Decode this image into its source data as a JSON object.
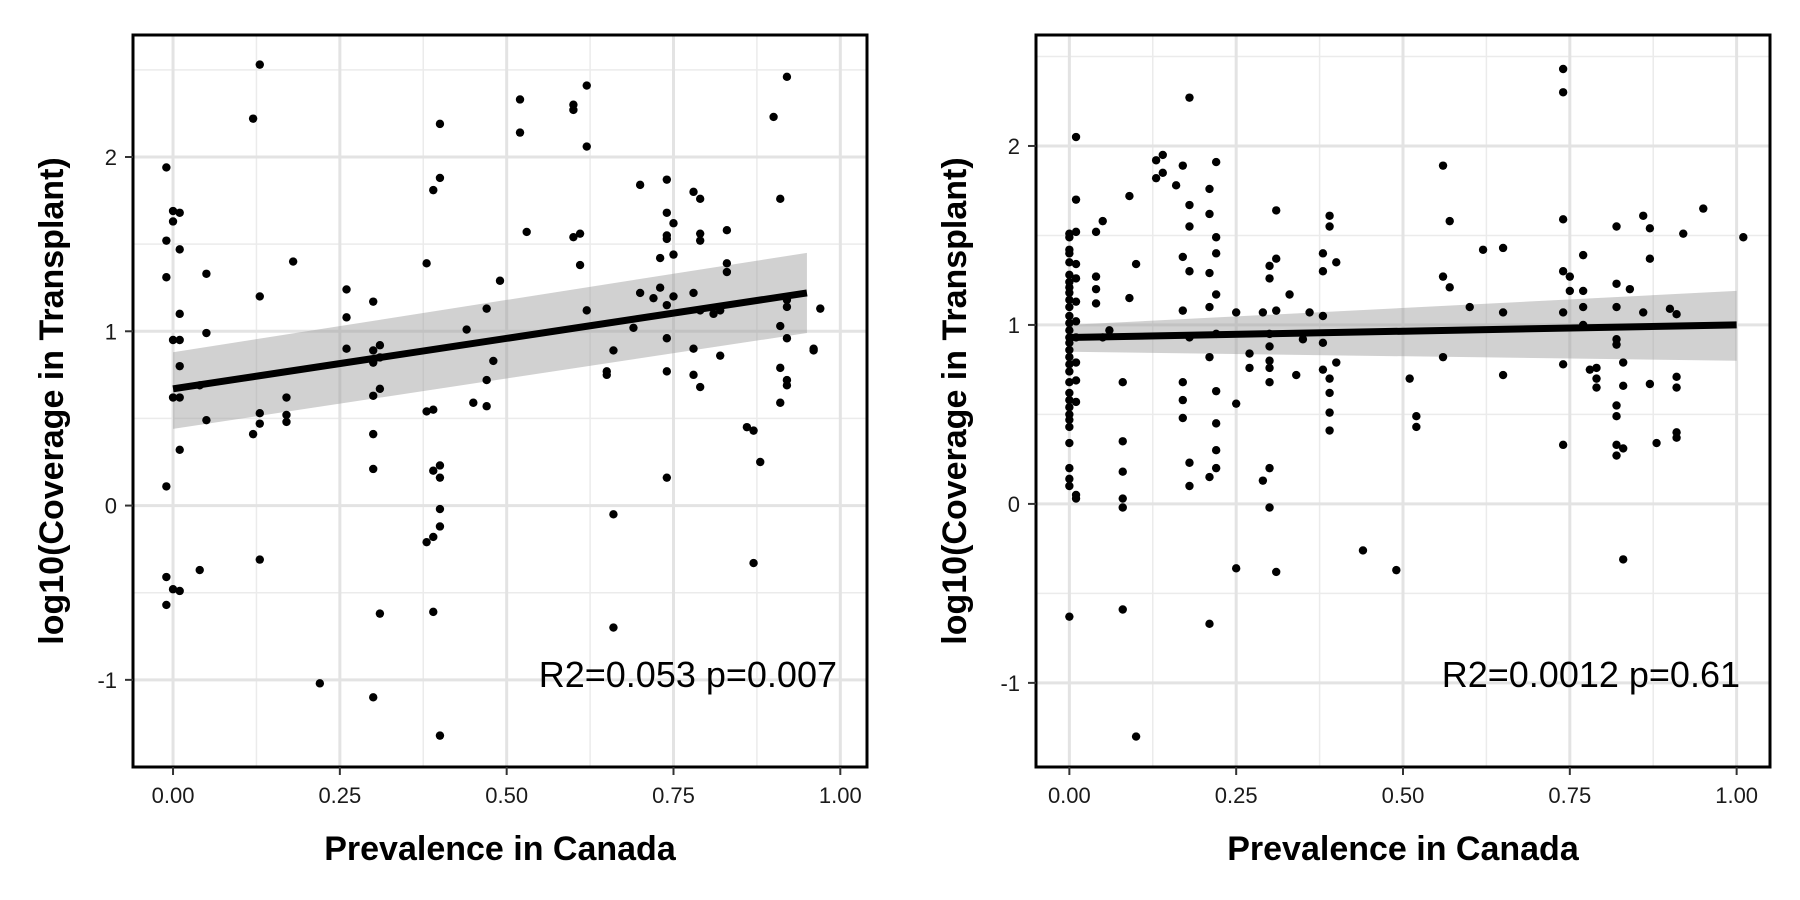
{
  "chart_data": [
    {
      "type": "scatter",
      "xlabel": "Prevalence in Canada",
      "ylabel": "log10(Coverage in Transplant)",
      "xlim": [
        -0.06,
        1.04
      ],
      "ylim": [
        -1.5,
        2.7
      ],
      "xticks": [
        0.0,
        0.25,
        0.5,
        0.75,
        1.0
      ],
      "xtick_labels": [
        "0.00",
        "0.25",
        "0.50",
        "0.75",
        "1.00"
      ],
      "yticks": [
        -1,
        0,
        1,
        2
      ],
      "ytick_labels": [
        "-1",
        "0",
        "1",
        "2"
      ],
      "grid": true,
      "annotation": "R2=0.053 p=0.007",
      "fit": {
        "x": [
          0.0,
          0.95
        ],
        "y": [
          0.67,
          1.22
        ]
      },
      "band": {
        "x": [
          0.0,
          0.95
        ],
        "upper": [
          0.88,
          1.45
        ],
        "lower": [
          0.44,
          0.99
        ]
      },
      "points": [
        [
          -0.01,
          1.94
        ],
        [
          -0.01,
          1.52
        ],
        [
          0.0,
          1.63
        ],
        [
          0.0,
          1.69
        ],
        [
          0.01,
          1.68
        ],
        [
          0.01,
          1.47
        ],
        [
          -0.01,
          1.31
        ],
        [
          0.01,
          1.1
        ],
        [
          0.0,
          0.95
        ],
        [
          0.01,
          0.95
        ],
        [
          0.01,
          0.8
        ],
        [
          0.01,
          0.62
        ],
        [
          0.0,
          0.62
        ],
        [
          0.01,
          0.32
        ],
        [
          -0.01,
          0.11
        ],
        [
          -0.01,
          -0.41
        ],
        [
          -0.01,
          -0.57
        ],
        [
          0.01,
          -0.49
        ],
        [
          0.0,
          -0.48
        ],
        [
          0.05,
          1.33
        ],
        [
          0.05,
          0.99
        ],
        [
          0.04,
          0.69
        ],
        [
          0.05,
          0.49
        ],
        [
          0.04,
          -0.37
        ],
        [
          0.13,
          2.53
        ],
        [
          0.12,
          2.22
        ],
        [
          0.13,
          1.2
        ],
        [
          0.13,
          0.53
        ],
        [
          0.13,
          0.47
        ],
        [
          0.12,
          0.41
        ],
        [
          0.13,
          -0.31
        ],
        [
          0.18,
          1.4
        ],
        [
          0.17,
          0.62
        ],
        [
          0.17,
          0.52
        ],
        [
          0.17,
          0.48
        ],
        [
          0.22,
          -1.02
        ],
        [
          0.26,
          1.24
        ],
        [
          0.26,
          1.08
        ],
        [
          0.26,
          0.9
        ],
        [
          0.3,
          1.17
        ],
        [
          0.3,
          0.89
        ],
        [
          0.31,
          0.92
        ],
        [
          0.31,
          0.85
        ],
        [
          0.3,
          0.82
        ],
        [
          0.31,
          0.67
        ],
        [
          0.3,
          0.63
        ],
        [
          0.3,
          0.41
        ],
        [
          0.3,
          0.21
        ],
        [
          0.31,
          -0.62
        ],
        [
          0.3,
          -1.1
        ],
        [
          0.38,
          1.39
        ],
        [
          0.39,
          1.81
        ],
        [
          0.4,
          1.88
        ],
        [
          0.4,
          2.19
        ],
        [
          0.39,
          0.55
        ],
        [
          0.38,
          0.54
        ],
        [
          0.39,
          0.2
        ],
        [
          0.4,
          0.23
        ],
        [
          0.4,
          0.16
        ],
        [
          0.4,
          -0.02
        ],
        [
          0.4,
          -0.12
        ],
        [
          0.39,
          -0.18
        ],
        [
          0.38,
          -0.21
        ],
        [
          0.39,
          -0.61
        ],
        [
          0.4,
          -1.32
        ],
        [
          0.44,
          1.01
        ],
        [
          0.45,
          0.59
        ],
        [
          0.47,
          1.13
        ],
        [
          0.47,
          0.72
        ],
        [
          0.47,
          0.57
        ],
        [
          0.48,
          0.83
        ],
        [
          0.49,
          1.29
        ],
        [
          0.52,
          2.33
        ],
        [
          0.52,
          2.14
        ],
        [
          0.53,
          1.57
        ],
        [
          0.6,
          2.3
        ],
        [
          0.6,
          2.27
        ],
        [
          0.62,
          2.41
        ],
        [
          0.62,
          2.06
        ],
        [
          0.61,
          1.56
        ],
        [
          0.6,
          1.54
        ],
        [
          0.61,
          1.38
        ],
        [
          0.62,
          1.12
        ],
        [
          0.65,
          0.77
        ],
        [
          0.65,
          0.75
        ],
        [
          0.66,
          0.89
        ],
        [
          0.66,
          -0.05
        ],
        [
          0.66,
          -0.7
        ],
        [
          0.7,
          1.84
        ],
        [
          0.7,
          1.22
        ],
        [
          0.69,
          1.02
        ],
        [
          0.72,
          1.19
        ],
        [
          0.73,
          1.25
        ],
        [
          0.73,
          1.42
        ],
        [
          0.74,
          1.55
        ],
        [
          0.74,
          1.53
        ],
        [
          0.74,
          1.87
        ],
        [
          0.74,
          1.68
        ],
        [
          0.75,
          1.62
        ],
        [
          0.75,
          1.44
        ],
        [
          0.74,
          1.15
        ],
        [
          0.75,
          1.2
        ],
        [
          0.74,
          0.96
        ],
        [
          0.74,
          0.77
        ],
        [
          0.74,
          0.16
        ],
        [
          0.78,
          1.8
        ],
        [
          0.79,
          1.76
        ],
        [
          0.79,
          1.56
        ],
        [
          0.79,
          1.52
        ],
        [
          0.78,
          1.22
        ],
        [
          0.79,
          1.12
        ],
        [
          0.78,
          0.9
        ],
        [
          0.78,
          0.75
        ],
        [
          0.79,
          0.68
        ],
        [
          0.81,
          1.1
        ],
        [
          0.82,
          0.86
        ],
        [
          0.82,
          1.12
        ],
        [
          0.83,
          1.34
        ],
        [
          0.83,
          1.39
        ],
        [
          0.83,
          1.58
        ],
        [
          0.86,
          0.45
        ],
        [
          0.87,
          0.43
        ],
        [
          0.88,
          0.25
        ],
        [
          0.87,
          -0.33
        ],
        [
          0.9,
          2.23
        ],
        [
          0.91,
          0.59
        ],
        [
          0.91,
          0.79
        ],
        [
          0.91,
          1.03
        ],
        [
          0.91,
          1.76
        ],
        [
          0.92,
          2.46
        ],
        [
          0.92,
          1.14
        ],
        [
          0.92,
          1.18
        ],
        [
          0.92,
          0.96
        ],
        [
          0.92,
          0.72
        ],
        [
          0.92,
          0.69
        ],
        [
          0.96,
          0.89
        ],
        [
          0.96,
          0.9
        ],
        [
          0.97,
          1.13
        ]
      ]
    },
    {
      "type": "scatter",
      "xlabel": "Prevalence in Canada",
      "ylabel": "log10(Coverage in Transplant)",
      "xlim": [
        -0.05,
        1.05
      ],
      "ylim": [
        -1.47,
        2.62
      ],
      "xticks": [
        0.0,
        0.25,
        0.5,
        0.75,
        1.0
      ],
      "xtick_labels": [
        "0.00",
        "0.25",
        "0.50",
        "0.75",
        "1.00"
      ],
      "yticks": [
        -1,
        0,
        1,
        2
      ],
      "ytick_labels": [
        "-1",
        "0",
        "1",
        "2"
      ],
      "grid": true,
      "annotation": "R2=0.0012 p=0.61",
      "fit": {
        "x": [
          0.0,
          1.0
        ],
        "y": [
          0.93,
          1.0
        ]
      },
      "band": {
        "x": [
          0.0,
          1.0
        ],
        "upper": [
          1.0,
          1.19
        ],
        "lower": [
          0.85,
          0.8
        ]
      },
      "points": [
        [
          0.0,
          1.51
        ],
        [
          0.0,
          1.49
        ],
        [
          0.0,
          1.42
        ],
        [
          0.0,
          1.4
        ],
        [
          0.0,
          1.35
        ],
        [
          0.0,
          1.28
        ],
        [
          0.0,
          1.24
        ],
        [
          0.0,
          1.21
        ],
        [
          0.0,
          1.18
        ],
        [
          0.0,
          1.14
        ],
        [
          0.0,
          1.1
        ],
        [
          0.0,
          1.05
        ],
        [
          0.0,
          1.01
        ],
        [
          0.0,
          0.97
        ],
        [
          0.0,
          0.93
        ],
        [
          0.0,
          0.9
        ],
        [
          0.0,
          0.86
        ],
        [
          0.0,
          0.82
        ],
        [
          0.0,
          0.78
        ],
        [
          0.0,
          0.74
        ],
        [
          0.0,
          0.68
        ],
        [
          0.0,
          0.62
        ],
        [
          0.0,
          0.58
        ],
        [
          0.0,
          0.54
        ],
        [
          0.0,
          0.5
        ],
        [
          0.0,
          0.47
        ],
        [
          0.0,
          0.43
        ],
        [
          0.0,
          0.34
        ],
        [
          0.0,
          0.2
        ],
        [
          0.0,
          0.14
        ],
        [
          0.0,
          0.1
        ],
        [
          0.01,
          0.05
        ],
        [
          0.01,
          0.03
        ],
        [
          0.0,
          -0.63
        ],
        [
          0.01,
          2.05
        ],
        [
          0.01,
          1.7
        ],
        [
          0.01,
          1.52
        ],
        [
          0.01,
          1.34
        ],
        [
          0.01,
          1.26
        ],
        [
          0.01,
          1.13
        ],
        [
          0.01,
          1.02
        ],
        [
          0.01,
          0.93
        ],
        [
          0.01,
          0.79
        ],
        [
          0.01,
          0.69
        ],
        [
          0.01,
          0.57
        ],
        [
          0.04,
          1.52
        ],
        [
          0.04,
          1.27
        ],
        [
          0.04,
          1.2
        ],
        [
          0.05,
          1.58
        ],
        [
          0.04,
          1.12
        ],
        [
          0.05,
          0.93
        ],
        [
          0.06,
          0.97
        ],
        [
          0.08,
          0.68
        ],
        [
          0.08,
          0.35
        ],
        [
          0.08,
          0.18
        ],
        [
          0.08,
          0.03
        ],
        [
          0.08,
          -0.02
        ],
        [
          0.08,
          -0.59
        ],
        [
          0.09,
          1.72
        ],
        [
          0.1,
          1.34
        ],
        [
          0.09,
          1.15
        ],
        [
          0.1,
          -1.3
        ],
        [
          0.13,
          1.82
        ],
        [
          0.13,
          1.92
        ],
        [
          0.14,
          1.95
        ],
        [
          0.14,
          1.85
        ],
        [
          0.16,
          1.78
        ],
        [
          0.17,
          1.89
        ],
        [
          0.18,
          1.67
        ],
        [
          0.18,
          1.55
        ],
        [
          0.17,
          1.38
        ],
        [
          0.18,
          1.3
        ],
        [
          0.17,
          1.08
        ],
        [
          0.18,
          0.93
        ],
        [
          0.17,
          0.68
        ],
        [
          0.17,
          0.58
        ],
        [
          0.17,
          0.48
        ],
        [
          0.18,
          0.23
        ],
        [
          0.18,
          0.1
        ],
        [
          0.18,
          2.27
        ],
        [
          0.21,
          1.76
        ],
        [
          0.22,
          1.91
        ],
        [
          0.21,
          1.62
        ],
        [
          0.22,
          1.49
        ],
        [
          0.22,
          1.4
        ],
        [
          0.21,
          1.29
        ],
        [
          0.22,
          1.17
        ],
        [
          0.21,
          1.1
        ],
        [
          0.22,
          0.95
        ],
        [
          0.21,
          0.82
        ],
        [
          0.22,
          0.63
        ],
        [
          0.22,
          0.45
        ],
        [
          0.22,
          0.3
        ],
        [
          0.22,
          0.2
        ],
        [
          0.21,
          0.15
        ],
        [
          0.21,
          -0.67
        ],
        [
          0.25,
          1.07
        ],
        [
          0.25,
          0.56
        ],
        [
          0.25,
          -0.36
        ],
        [
          0.27,
          0.84
        ],
        [
          0.27,
          0.76
        ],
        [
          0.29,
          1.07
        ],
        [
          0.3,
          1.33
        ],
        [
          0.3,
          1.26
        ],
        [
          0.3,
          0.95
        ],
        [
          0.3,
          0.88
        ],
        [
          0.3,
          0.8
        ],
        [
          0.3,
          0.76
        ],
        [
          0.3,
          0.68
        ],
        [
          0.29,
          0.13
        ],
        [
          0.3,
          0.2
        ],
        [
          0.3,
          -0.02
        ],
        [
          0.31,
          1.64
        ],
        [
          0.31,
          1.37
        ],
        [
          0.31,
          1.08
        ],
        [
          0.31,
          -0.38
        ],
        [
          0.33,
          1.17
        ],
        [
          0.34,
          0.72
        ],
        [
          0.35,
          0.92
        ],
        [
          0.36,
          1.07
        ],
        [
          0.38,
          1.4
        ],
        [
          0.38,
          1.3
        ],
        [
          0.38,
          1.05
        ],
        [
          0.38,
          0.9
        ],
        [
          0.38,
          0.75
        ],
        [
          0.39,
          0.7
        ],
        [
          0.39,
          0.62
        ],
        [
          0.39,
          0.51
        ],
        [
          0.39,
          0.41
        ],
        [
          0.39,
          1.61
        ],
        [
          0.39,
          1.55
        ],
        [
          0.4,
          1.35
        ],
        [
          0.4,
          0.79
        ],
        [
          0.44,
          -0.26
        ],
        [
          0.49,
          -0.37
        ],
        [
          0.51,
          0.7
        ],
        [
          0.52,
          0.49
        ],
        [
          0.52,
          0.43
        ],
        [
          0.56,
          1.89
        ],
        [
          0.56,
          1.27
        ],
        [
          0.57,
          1.58
        ],
        [
          0.57,
          1.21
        ],
        [
          0.56,
          0.82
        ],
        [
          0.6,
          1.1
        ],
        [
          0.62,
          1.42
        ],
        [
          0.65,
          1.43
        ],
        [
          0.65,
          1.07
        ],
        [
          0.65,
          0.72
        ],
        [
          0.74,
          2.43
        ],
        [
          0.74,
          2.3
        ],
        [
          0.74,
          1.59
        ],
        [
          0.74,
          1.3
        ],
        [
          0.75,
          1.27
        ],
        [
          0.75,
          1.19
        ],
        [
          0.74,
          1.07
        ],
        [
          0.74,
          0.78
        ],
        [
          0.74,
          0.33
        ],
        [
          0.77,
          1.39
        ],
        [
          0.77,
          1.19
        ],
        [
          0.77,
          1.0
        ],
        [
          0.78,
          0.75
        ],
        [
          0.79,
          0.76
        ],
        [
          0.79,
          0.7
        ],
        [
          0.79,
          0.65
        ],
        [
          0.77,
          1.1
        ],
        [
          0.82,
          1.55
        ],
        [
          0.82,
          1.23
        ],
        [
          0.82,
          1.1
        ],
        [
          0.82,
          0.92
        ],
        [
          0.82,
          0.89
        ],
        [
          0.83,
          0.79
        ],
        [
          0.83,
          0.66
        ],
        [
          0.82,
          0.55
        ],
        [
          0.82,
          0.49
        ],
        [
          0.82,
          0.33
        ],
        [
          0.82,
          0.27
        ],
        [
          0.83,
          0.31
        ],
        [
          0.83,
          -0.31
        ],
        [
          0.84,
          1.2
        ],
        [
          0.86,
          1.61
        ],
        [
          0.87,
          1.54
        ],
        [
          0.87,
          1.37
        ],
        [
          0.86,
          1.07
        ],
        [
          0.87,
          0.67
        ],
        [
          0.88,
          0.34
        ],
        [
          0.9,
          1.09
        ],
        [
          0.91,
          1.06
        ],
        [
          0.91,
          0.71
        ],
        [
          0.91,
          0.65
        ],
        [
          0.91,
          0.4
        ],
        [
          0.91,
          0.37
        ],
        [
          0.92,
          1.51
        ],
        [
          0.95,
          1.65
        ],
        [
          1.01,
          1.49
        ]
      ]
    }
  ]
}
